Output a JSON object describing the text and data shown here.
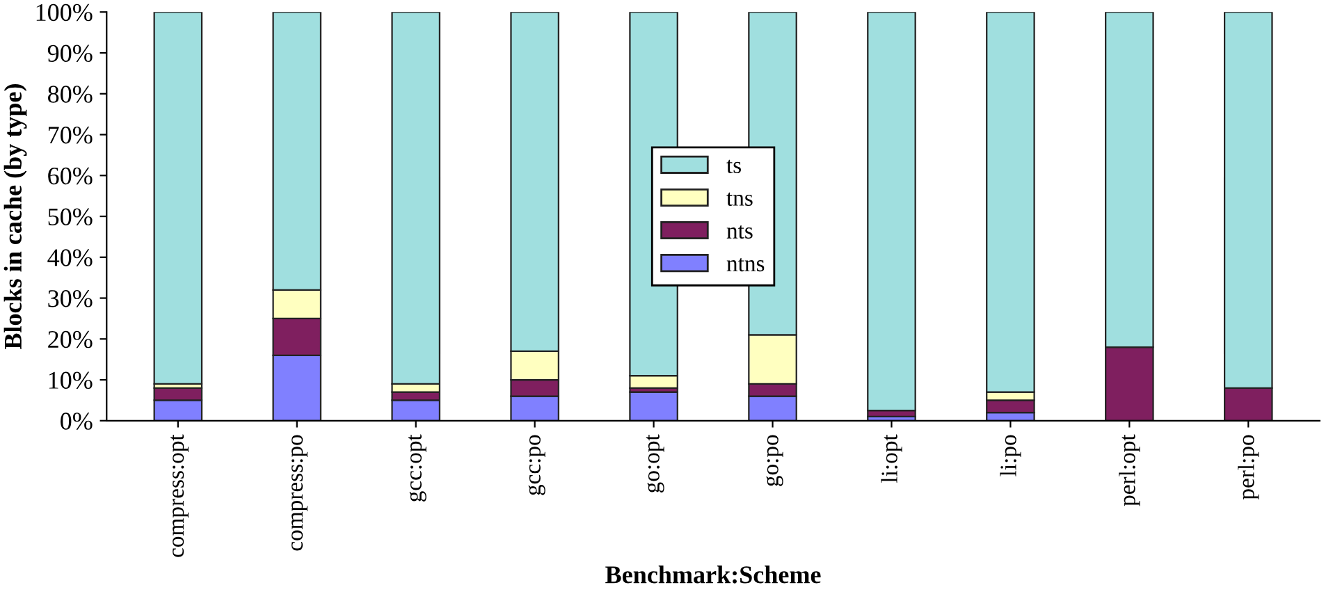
{
  "chart_data": {
    "type": "bar",
    "stacked": true,
    "xlabel": "Benchmark:Scheme",
    "ylabel": "Blocks in cache (by type)",
    "categories": [
      "compress:opt",
      "compress:po",
      "gcc:opt",
      "gcc:po",
      "go:opt",
      "go:po",
      "li:opt",
      "li:po",
      "perl:opt",
      "perl:po"
    ],
    "series": [
      {
        "name": "ntns",
        "color": "#8080ff",
        "values": [
          5,
          16,
          5,
          6,
          7,
          6,
          1,
          2,
          0,
          0
        ]
      },
      {
        "name": "nts",
        "color": "#7f1f5f",
        "values": [
          3,
          9,
          2,
          4,
          1,
          3,
          1.5,
          3,
          18,
          8
        ]
      },
      {
        "name": "tns",
        "color": "#ffffc0",
        "values": [
          1,
          7,
          2,
          7,
          3,
          12,
          null,
          2,
          0,
          0
        ]
      },
      {
        "name": "ts",
        "color": "#a0dfdf",
        "values": [
          91,
          68,
          91,
          83,
          89,
          79,
          97.5,
          93,
          82,
          92
        ]
      }
    ],
    "ylim": [
      0,
      100
    ],
    "yticks": [
      {
        "value": 0,
        "label": "0%"
      },
      {
        "value": 10,
        "label": "10%"
      },
      {
        "value": 20,
        "label": "20%"
      },
      {
        "value": 30,
        "label": "30%"
      },
      {
        "value": 40,
        "label": "40%"
      },
      {
        "value": 50,
        "label": "50%"
      },
      {
        "value": 60,
        "label": "60%"
      },
      {
        "value": 70,
        "label": "70%"
      },
      {
        "value": 80,
        "label": "80%"
      },
      {
        "value": 90,
        "label": "90%"
      },
      {
        "value": 100,
        "label": "100%"
      }
    ],
    "grid": false,
    "legend": "center"
  }
}
